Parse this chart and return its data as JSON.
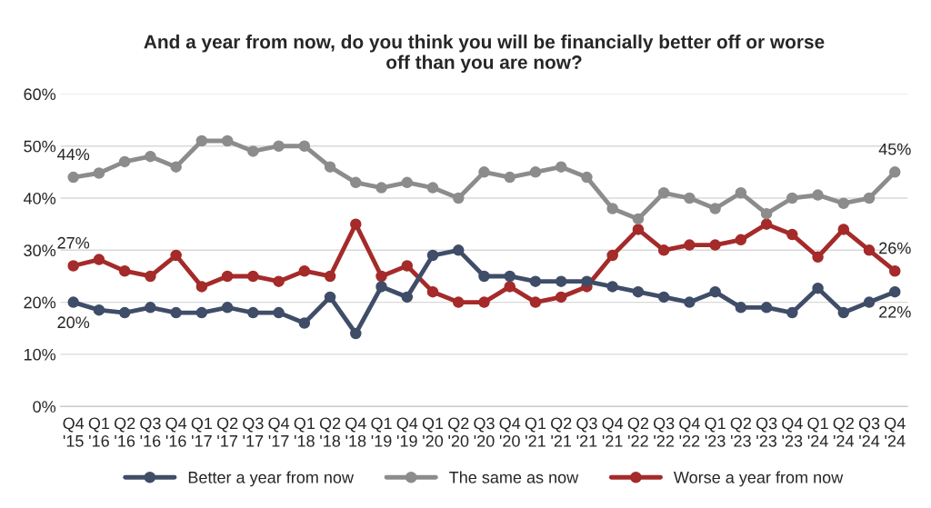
{
  "chart_data": {
    "type": "line",
    "title": "And a year from now, do you think you will be financially better off or worse\noff than you are now?",
    "categories": [
      "Q4\n'15",
      "Q1\n'16",
      "Q2\n'16",
      "Q3\n'16",
      "Q4\n'16",
      "Q1\n'17",
      "Q2\n'17",
      "Q3\n'17",
      "Q4\n'17",
      "Q1\n'18",
      "Q2\n'18",
      "Q4\n'18",
      "Q1\n'19",
      "Q4\n'19",
      "Q1\n'20",
      "Q2\n'20",
      "Q3\n'20",
      "Q4\n'20",
      "Q1\n'21",
      "Q2\n'21",
      "Q3\n'21",
      "Q4\n'21",
      "Q2\n'22",
      "Q3\n'22",
      "Q4\n'22",
      "Q1\n'23",
      "Q2\n'23",
      "Q3\n'23",
      "Q4\n'23",
      "Q1\n'24",
      "Q2\n'24",
      "Q3\n'24",
      "Q4\n'24"
    ],
    "series": [
      {
        "name": "Better a year from now",
        "color": "#3f4d68",
        "values": [
          20,
          18.5,
          18,
          19,
          18,
          18,
          19,
          18,
          18,
          16,
          21,
          14,
          23,
          21,
          29,
          30,
          25,
          25,
          24,
          24,
          24,
          23,
          22,
          21,
          20,
          22,
          19,
          19,
          18,
          22.7,
          18,
          20,
          22
        ],
        "value_labels": [
          "20%",
          null,
          null,
          null,
          null,
          null,
          null,
          null,
          null,
          null,
          null,
          null,
          null,
          null,
          null,
          null,
          null,
          null,
          null,
          null,
          null,
          null,
          null,
          null,
          null,
          null,
          null,
          null,
          null,
          null,
          null,
          null,
          "22%"
        ]
      },
      {
        "name": "The same as now",
        "color": "#8c8c8c",
        "values": [
          44,
          44.8,
          47,
          48,
          46,
          51,
          51,
          49,
          50,
          50,
          46,
          43,
          42,
          43,
          42,
          40,
          45,
          44,
          45,
          46,
          44,
          38,
          36,
          41,
          40,
          38,
          41,
          37,
          40,
          40.6,
          39,
          40,
          45
        ],
        "value_labels": [
          "44%",
          null,
          null,
          null,
          null,
          null,
          null,
          null,
          null,
          null,
          null,
          null,
          null,
          null,
          null,
          null,
          null,
          null,
          null,
          null,
          null,
          null,
          null,
          null,
          null,
          null,
          null,
          null,
          null,
          null,
          null,
          null,
          "45%"
        ]
      },
      {
        "name": "Worse a year from now",
        "color": "#a52a2a",
        "values": [
          27,
          28.2,
          26,
          25,
          29,
          23,
          25,
          25,
          24,
          26,
          25,
          35,
          25,
          27,
          22,
          20,
          20,
          23,
          20,
          21,
          23,
          29,
          34,
          30,
          31,
          31,
          32,
          35,
          33,
          28.7,
          34,
          30,
          26
        ],
        "value_labels": [
          "27%",
          null,
          null,
          null,
          null,
          null,
          null,
          null,
          null,
          null,
          null,
          null,
          null,
          null,
          null,
          null,
          null,
          null,
          null,
          null,
          null,
          null,
          null,
          null,
          null,
          null,
          null,
          null,
          null,
          null,
          null,
          null,
          "26%"
        ]
      }
    ],
    "ylim": [
      0,
      60
    ],
    "yticks": [
      {
        "value": 0,
        "label": "0%"
      },
      {
        "value": 10,
        "label": "10%"
      },
      {
        "value": 20,
        "label": "20%"
      },
      {
        "value": 30,
        "label": "30%"
      },
      {
        "value": 40,
        "label": "40%"
      },
      {
        "value": 50,
        "label": "50%"
      },
      {
        "value": 60,
        "label": "60%"
      }
    ],
    "grid": "y",
    "legend": "bottom",
    "marker": "circle",
    "line_style": "solid"
  }
}
